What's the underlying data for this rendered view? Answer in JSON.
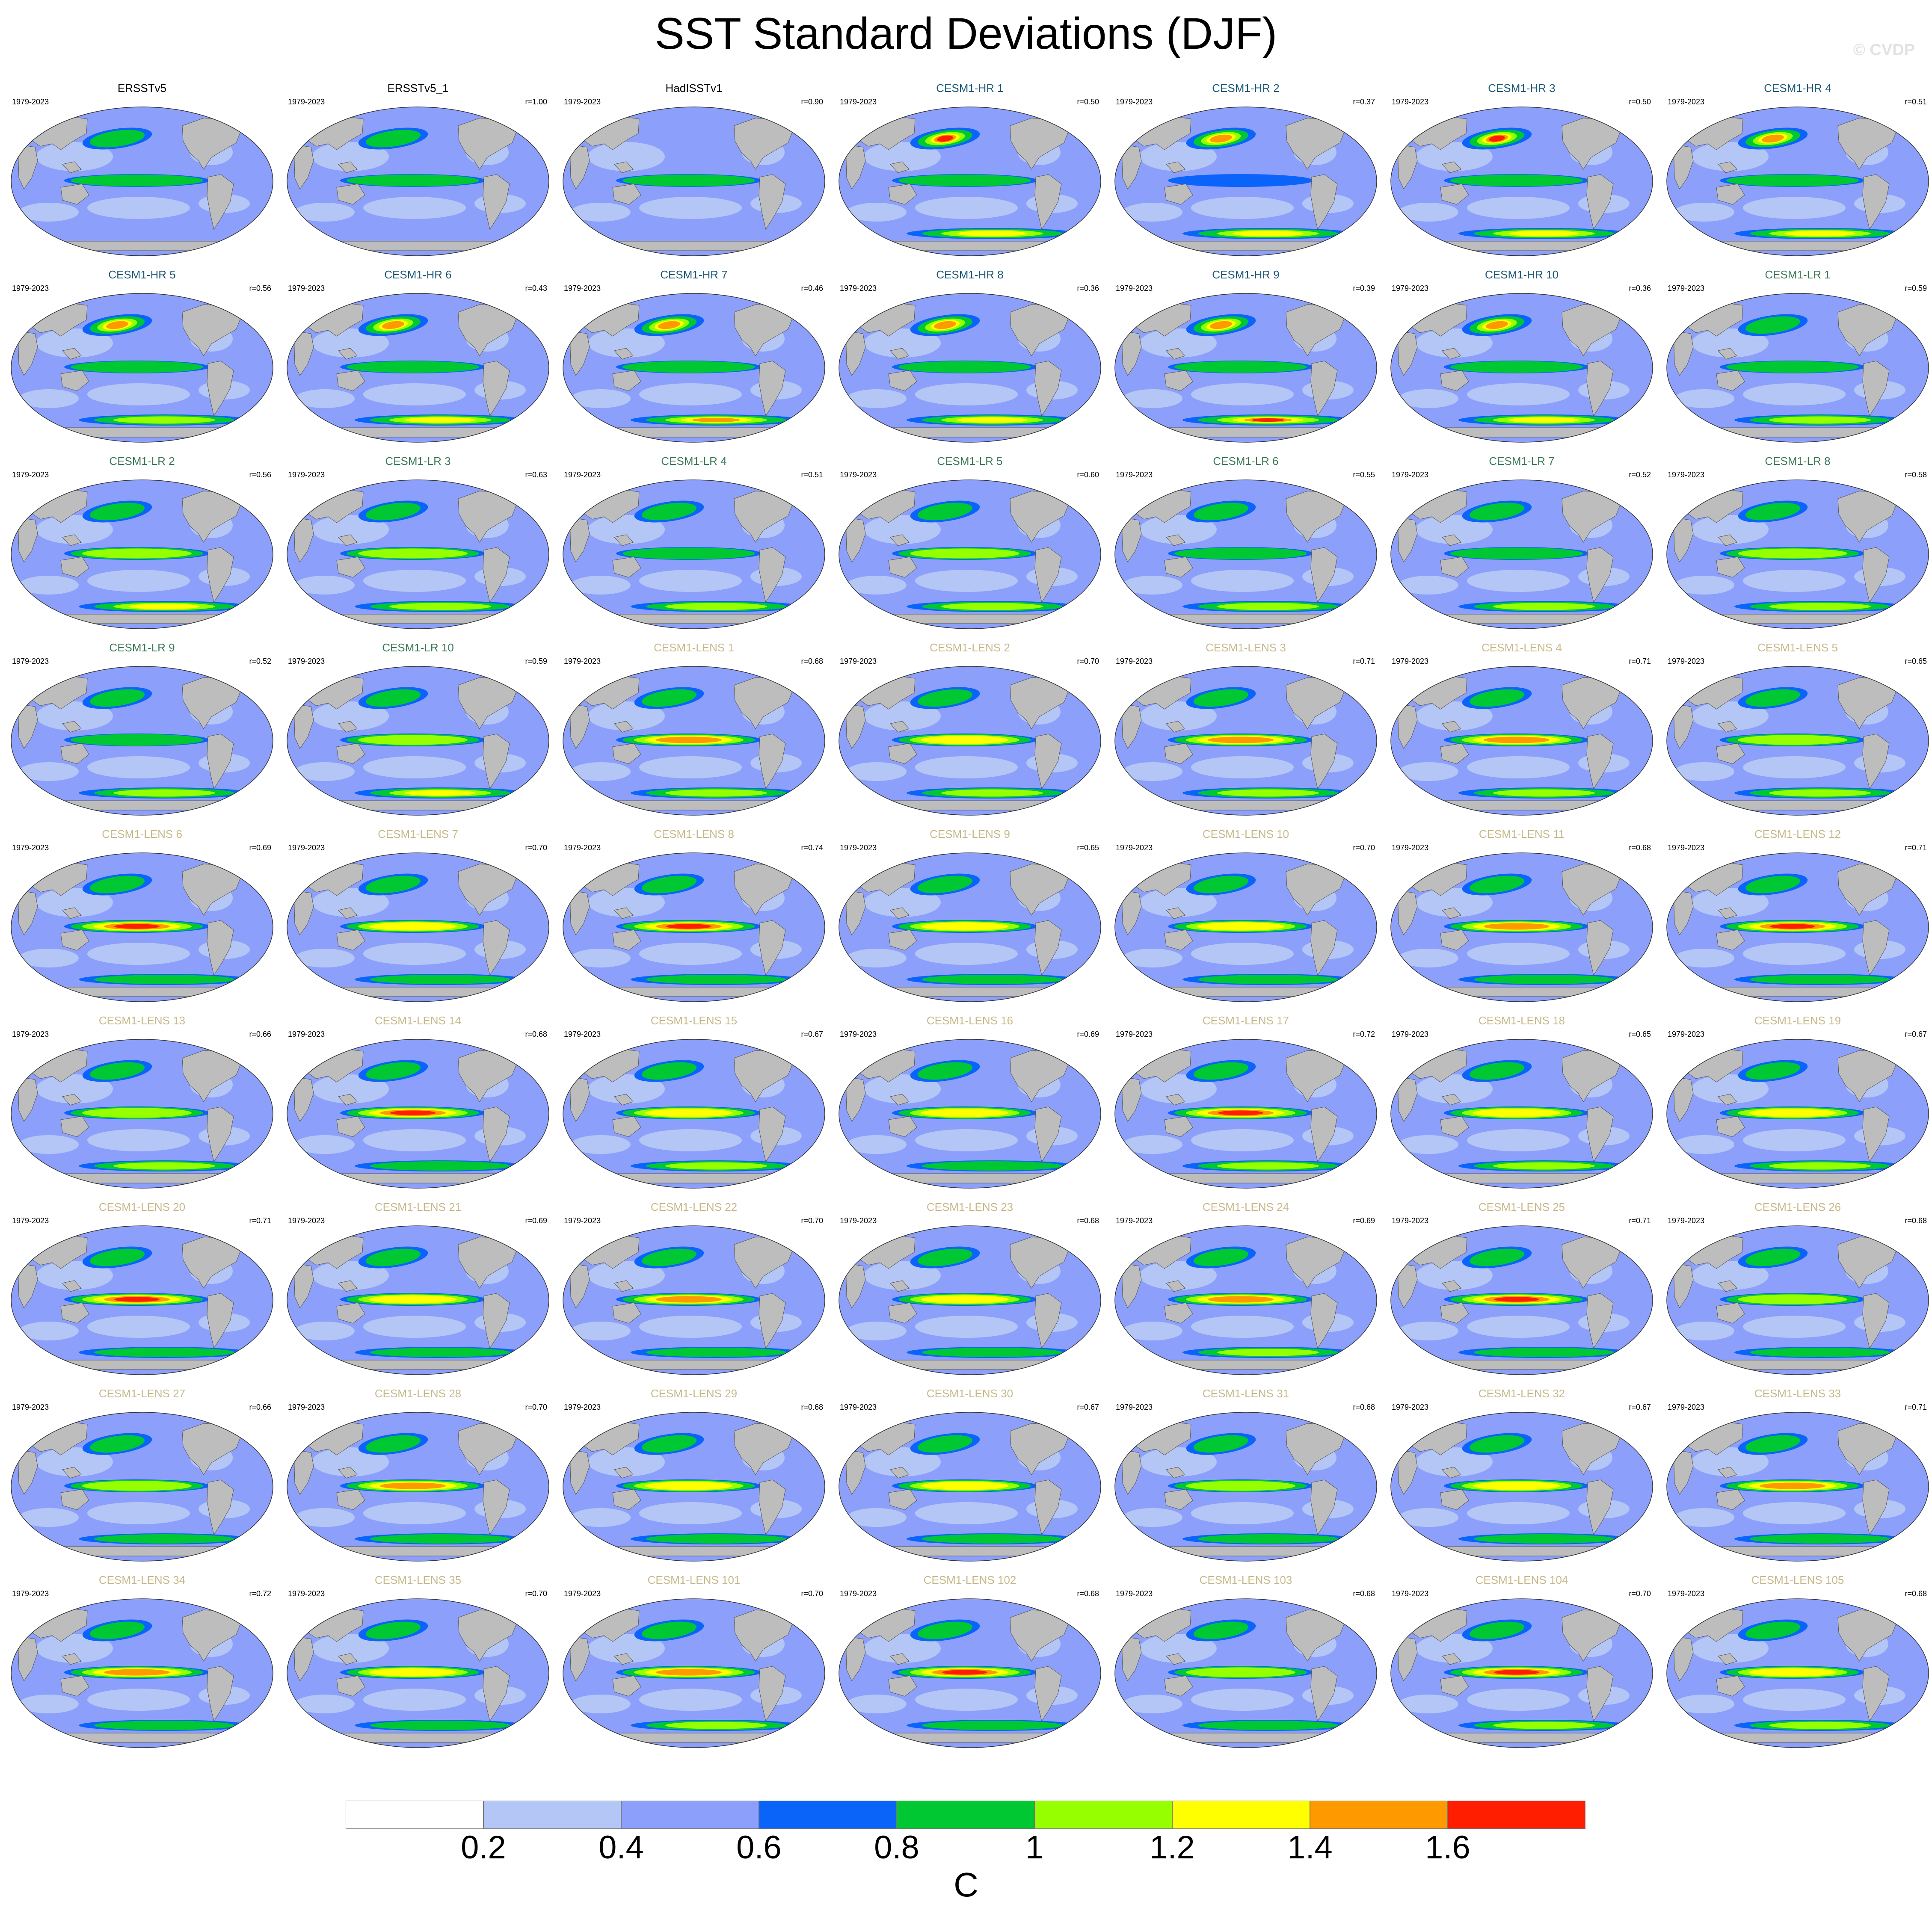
{
  "title": "SST Standard Deviations (DJF)",
  "watermark": "© CVDP",
  "chart_data": {
    "type": "heatmap",
    "title": "SST Standard Deviations (DJF)",
    "units": "C",
    "period": "1979-2023",
    "colorbar": {
      "levels": [
        0.2,
        0.4,
        0.6,
        0.8,
        1,
        1.2,
        1.4,
        1.6
      ],
      "labels": [
        "0.2",
        "0.4",
        "0.6",
        "0.8",
        "1",
        "1.2",
        "1.4",
        "1.6"
      ],
      "colors": [
        "#ffffff",
        "#b4c6f6",
        "#8c9ffa",
        "#0a64fa",
        "#00c832",
        "#96ff00",
        "#ffff00",
        "#ff9900",
        "#ff1e00"
      ]
    },
    "colors": {
      "observations": "#000000",
      "CESM1-HR": "#1f5a78",
      "CESM1-LR": "#3c7a5a",
      "CESM1-LENS": "#c7b98a",
      "land": "#bdbdbd"
    },
    "panels": [
      {
        "name": "ERSSTv5",
        "group": "observations",
        "period": "1979-2023",
        "r": "",
        "nino": 0.95,
        "kuro": 0.9,
        "so": 0.55
      },
      {
        "name": "ERSSTv5_1",
        "group": "observations",
        "period": "1979-2023",
        "r": "r=1.00",
        "nino": 0.95,
        "kuro": 0.9,
        "so": 0.55
      },
      {
        "name": "HadISSTv1",
        "group": "observations",
        "period": "1979-2023",
        "r": "r=0.90",
        "nino": 0.9,
        "kuro": 0.6,
        "so": 0.4
      },
      {
        "name": "CESM1-HR 1",
        "group": "CESM1-HR",
        "period": "1979-2023",
        "r": "r=0.50",
        "nino": 0.85,
        "kuro": 1.7,
        "so": 1.3
      },
      {
        "name": "CESM1-HR 2",
        "group": "CESM1-HR",
        "period": "1979-2023",
        "r": "r=0.37",
        "nino": 0.75,
        "kuro": 1.6,
        "so": 1.3
      },
      {
        "name": "CESM1-HR 3",
        "group": "CESM1-HR",
        "period": "1979-2023",
        "r": "r=0.50",
        "nino": 0.85,
        "kuro": 1.7,
        "so": 1.4
      },
      {
        "name": "CESM1-HR 4",
        "group": "CESM1-HR",
        "period": "1979-2023",
        "r": "r=0.51",
        "nino": 0.9,
        "kuro": 1.6,
        "so": 1.3
      },
      {
        "name": "CESM1-HR 5",
        "group": "CESM1-HR",
        "period": "1979-2023",
        "r": "r=0.56",
        "nino": 0.9,
        "kuro": 1.6,
        "so": 1.2
      },
      {
        "name": "CESM1-HR 6",
        "group": "CESM1-HR",
        "period": "1979-2023",
        "r": "r=0.43",
        "nino": 0.85,
        "kuro": 1.6,
        "so": 1.3
      },
      {
        "name": "CESM1-HR 7",
        "group": "CESM1-HR",
        "period": "1979-2023",
        "r": "r=0.46",
        "nino": 0.9,
        "kuro": 1.6,
        "so": 1.5
      },
      {
        "name": "CESM1-HR 8",
        "group": "CESM1-HR",
        "period": "1979-2023",
        "r": "r=0.36",
        "nino": 0.85,
        "kuro": 1.6,
        "so": 1.4
      },
      {
        "name": "CESM1-HR 9",
        "group": "CESM1-HR",
        "period": "1979-2023",
        "r": "r=0.39",
        "nino": 0.85,
        "kuro": 1.6,
        "so": 1.7
      },
      {
        "name": "CESM1-HR 10",
        "group": "CESM1-HR",
        "period": "1979-2023",
        "r": "r=0.36",
        "nino": 0.85,
        "kuro": 1.6,
        "so": 1.3
      },
      {
        "name": "CESM1-LR 1",
        "group": "CESM1-LR",
        "period": "1979-2023",
        "r": "r=0.59",
        "nino": 0.9,
        "kuro": 0.9,
        "so": 1.2
      },
      {
        "name": "CESM1-LR 2",
        "group": "CESM1-LR",
        "period": "1979-2023",
        "r": "r=0.56",
        "nino": 1.1,
        "kuro": 0.9,
        "so": 1.4
      },
      {
        "name": "CESM1-LR 3",
        "group": "CESM1-LR",
        "period": "1979-2023",
        "r": "r=0.63",
        "nino": 1.15,
        "kuro": 0.9,
        "so": 1.2
      },
      {
        "name": "CESM1-LR 4",
        "group": "CESM1-LR",
        "period": "1979-2023",
        "r": "r=0.51",
        "nino": 0.9,
        "kuro": 0.85,
        "so": 1.2
      },
      {
        "name": "CESM1-LR 5",
        "group": "CESM1-LR",
        "period": "1979-2023",
        "r": "r=0.60",
        "nino": 1.1,
        "kuro": 0.9,
        "so": 1.2
      },
      {
        "name": "CESM1-LR 6",
        "group": "CESM1-LR",
        "period": "1979-2023",
        "r": "r=0.55",
        "nino": 0.9,
        "kuro": 0.9,
        "so": 1.1
      },
      {
        "name": "CESM1-LR 7",
        "group": "CESM1-LR",
        "period": "1979-2023",
        "r": "r=0.52",
        "nino": 1.0,
        "kuro": 0.9,
        "so": 1.2
      },
      {
        "name": "CESM1-LR 8",
        "group": "CESM1-LR",
        "period": "1979-2023",
        "r": "r=0.58",
        "nino": 1.05,
        "kuro": 0.9,
        "so": 1.2
      },
      {
        "name": "CESM1-LR 9",
        "group": "CESM1-LR",
        "period": "1979-2023",
        "r": "r=0.52",
        "nino": 0.95,
        "kuro": 0.9,
        "so": 1.2
      },
      {
        "name": "CESM1-LR 10",
        "group": "CESM1-LR",
        "period": "1979-2023",
        "r": "r=0.59",
        "nino": 1.1,
        "kuro": 0.9,
        "so": 1.3
      },
      {
        "name": "CESM1-LENS 1",
        "group": "CESM1-LENS",
        "period": "1979-2023",
        "r": "r=0.68",
        "nino": 1.5,
        "kuro": 1.0,
        "so": 1.1
      },
      {
        "name": "CESM1-LENS 2",
        "group": "CESM1-LENS",
        "period": "1979-2023",
        "r": "r=0.70",
        "nino": 1.3,
        "kuro": 1.0,
        "so": 1.1
      },
      {
        "name": "CESM1-LENS 3",
        "group": "CESM1-LENS",
        "period": "1979-2023",
        "r": "r=0.71",
        "nino": 1.55,
        "kuro": 1.0,
        "so": 1.1
      },
      {
        "name": "CESM1-LENS 4",
        "group": "CESM1-LENS",
        "period": "1979-2023",
        "r": "r=0.71",
        "nino": 1.6,
        "kuro": 1.0,
        "so": 1.1
      },
      {
        "name": "CESM1-LENS 5",
        "group": "CESM1-LENS",
        "period": "1979-2023",
        "r": "r=0.65",
        "nino": 1.15,
        "kuro": 1.0,
        "so": 1.1
      },
      {
        "name": "CESM1-LENS 6",
        "group": "CESM1-LENS",
        "period": "1979-2023",
        "r": "r=0.69",
        "nino": 1.65,
        "kuro": 1.0,
        "so": 1.0
      },
      {
        "name": "CESM1-LENS 7",
        "group": "CESM1-LENS",
        "period": "1979-2023",
        "r": "r=0.70",
        "nino": 1.3,
        "kuro": 1.0,
        "so": 1.0
      },
      {
        "name": "CESM1-LENS 8",
        "group": "CESM1-LENS",
        "period": "1979-2023",
        "r": "r=0.74",
        "nino": 1.65,
        "kuro": 1.0,
        "so": 1.0
      },
      {
        "name": "CESM1-LENS 9",
        "group": "CESM1-LENS",
        "period": "1979-2023",
        "r": "r=0.65",
        "nino": 1.25,
        "kuro": 1.0,
        "so": 1.0
      },
      {
        "name": "CESM1-LENS 10",
        "group": "CESM1-LENS",
        "period": "1979-2023",
        "r": "r=0.70",
        "nino": 1.25,
        "kuro": 1.0,
        "so": 1.0
      },
      {
        "name": "CESM1-LENS 11",
        "group": "CESM1-LENS",
        "period": "1979-2023",
        "r": "r=0.68",
        "nino": 1.55,
        "kuro": 1.0,
        "so": 1.0
      },
      {
        "name": "CESM1-LENS 12",
        "group": "CESM1-LENS",
        "period": "1979-2023",
        "r": "r=0.71",
        "nino": 1.7,
        "kuro": 1.0,
        "so": 1.0
      },
      {
        "name": "CESM1-LENS 13",
        "group": "CESM1-LENS",
        "period": "1979-2023",
        "r": "r=0.66",
        "nino": 1.2,
        "kuro": 1.0,
        "so": 1.1
      },
      {
        "name": "CESM1-LENS 14",
        "group": "CESM1-LENS",
        "period": "1979-2023",
        "r": "r=0.68",
        "nino": 1.75,
        "kuro": 1.0,
        "so": 1.0
      },
      {
        "name": "CESM1-LENS 15",
        "group": "CESM1-LENS",
        "period": "1979-2023",
        "r": "r=0.67",
        "nino": 1.4,
        "kuro": 1.0,
        "so": 1.1
      },
      {
        "name": "CESM1-LENS 16",
        "group": "CESM1-LENS",
        "period": "1979-2023",
        "r": "r=0.69",
        "nino": 1.35,
        "kuro": 1.0,
        "so": 1.0
      },
      {
        "name": "CESM1-LENS 17",
        "group": "CESM1-LENS",
        "period": "1979-2023",
        "r": "r=0.72",
        "nino": 1.75,
        "kuro": 1.0,
        "so": 1.1
      },
      {
        "name": "CESM1-LENS 18",
        "group": "CESM1-LENS",
        "period": "1979-2023",
        "r": "r=0.65",
        "nino": 1.25,
        "kuro": 1.0,
        "so": 1.1
      },
      {
        "name": "CESM1-LENS 19",
        "group": "CESM1-LENS",
        "period": "1979-2023",
        "r": "r=0.67",
        "nino": 1.3,
        "kuro": 1.0,
        "so": 1.1
      },
      {
        "name": "CESM1-LENS 20",
        "group": "CESM1-LENS",
        "period": "1979-2023",
        "r": "r=0.71",
        "nino": 1.65,
        "kuro": 1.0,
        "so": 1.0
      },
      {
        "name": "CESM1-LENS 21",
        "group": "CESM1-LENS",
        "period": "1979-2023",
        "r": "r=0.69",
        "nino": 1.3,
        "kuro": 1.0,
        "so": 1.0
      },
      {
        "name": "CESM1-LENS 22",
        "group": "CESM1-LENS",
        "period": "1979-2023",
        "r": "r=0.70",
        "nino": 1.5,
        "kuro": 1.0,
        "so": 1.0
      },
      {
        "name": "CESM1-LENS 23",
        "group": "CESM1-LENS",
        "period": "1979-2023",
        "r": "r=0.68",
        "nino": 1.3,
        "kuro": 1.0,
        "so": 1.0
      },
      {
        "name": "CESM1-LENS 24",
        "group": "CESM1-LENS",
        "period": "1979-2023",
        "r": "r=0.69",
        "nino": 1.55,
        "kuro": 1.0,
        "so": 1.1
      },
      {
        "name": "CESM1-LENS 25",
        "group": "CESM1-LENS",
        "period": "1979-2023",
        "r": "r=0.71",
        "nino": 1.65,
        "kuro": 1.0,
        "so": 1.0
      },
      {
        "name": "CESM1-LENS 26",
        "group": "CESM1-LENS",
        "period": "1979-2023",
        "r": "r=0.68",
        "nino": 1.2,
        "kuro": 1.0,
        "so": 1.0
      },
      {
        "name": "CESM1-LENS 27",
        "group": "CESM1-LENS",
        "period": "1979-2023",
        "r": "r=0.66",
        "nino": 1.2,
        "kuro": 1.0,
        "so": 1.0
      },
      {
        "name": "CESM1-LENS 28",
        "group": "CESM1-LENS",
        "period": "1979-2023",
        "r": "r=0.70",
        "nino": 1.55,
        "kuro": 1.0,
        "so": 1.0
      },
      {
        "name": "CESM1-LENS 29",
        "group": "CESM1-LENS",
        "period": "1979-2023",
        "r": "r=0.68",
        "nino": 1.25,
        "kuro": 1.0,
        "so": 1.0
      },
      {
        "name": "CESM1-LENS 30",
        "group": "CESM1-LENS",
        "period": "1979-2023",
        "r": "r=0.67",
        "nino": 1.3,
        "kuro": 1.0,
        "so": 1.0
      },
      {
        "name": "CESM1-LENS 31",
        "group": "CESM1-LENS",
        "period": "1979-2023",
        "r": "r=0.68",
        "nino": 1.2,
        "kuro": 1.0,
        "so": 1.0
      },
      {
        "name": "CESM1-LENS 32",
        "group": "CESM1-LENS",
        "period": "1979-2023",
        "r": "r=0.67",
        "nino": 1.25,
        "kuro": 1.0,
        "so": 1.0
      },
      {
        "name": "CESM1-LENS 33",
        "group": "CESM1-LENS",
        "period": "1979-2023",
        "r": "r=0.71",
        "nino": 1.55,
        "kuro": 1.0,
        "so": 1.0
      },
      {
        "name": "CESM1-LENS 34",
        "group": "CESM1-LENS",
        "period": "1979-2023",
        "r": "r=0.72",
        "nino": 1.5,
        "kuro": 1.0,
        "so": 1.0
      },
      {
        "name": "CESM1-LENS 35",
        "group": "CESM1-LENS",
        "period": "1979-2023",
        "r": "r=0.70",
        "nino": 1.3,
        "kuro": 1.0,
        "so": 1.0
      },
      {
        "name": "CESM1-LENS 101",
        "group": "CESM1-LENS",
        "period": "1979-2023",
        "r": "r=0.70",
        "nino": 1.55,
        "kuro": 1.0,
        "so": 1.1
      },
      {
        "name": "CESM1-LENS 102",
        "group": "CESM1-LENS",
        "period": "1979-2023",
        "r": "r=0.68",
        "nino": 1.7,
        "kuro": 1.0,
        "so": 1.0
      },
      {
        "name": "CESM1-LENS 103",
        "group": "CESM1-LENS",
        "period": "1979-2023",
        "r": "r=0.68",
        "nino": 1.2,
        "kuro": 1.0,
        "so": 1.0
      },
      {
        "name": "CESM1-LENS 104",
        "group": "CESM1-LENS",
        "period": "1979-2023",
        "r": "r=0.70",
        "nino": 1.7,
        "kuro": 1.0,
        "so": 1.1
      },
      {
        "name": "CESM1-LENS 105",
        "group": "CESM1-LENS",
        "period": "1979-2023",
        "r": "r=0.68",
        "nino": 1.3,
        "kuro": 1.0,
        "so": 1.1
      }
    ]
  }
}
